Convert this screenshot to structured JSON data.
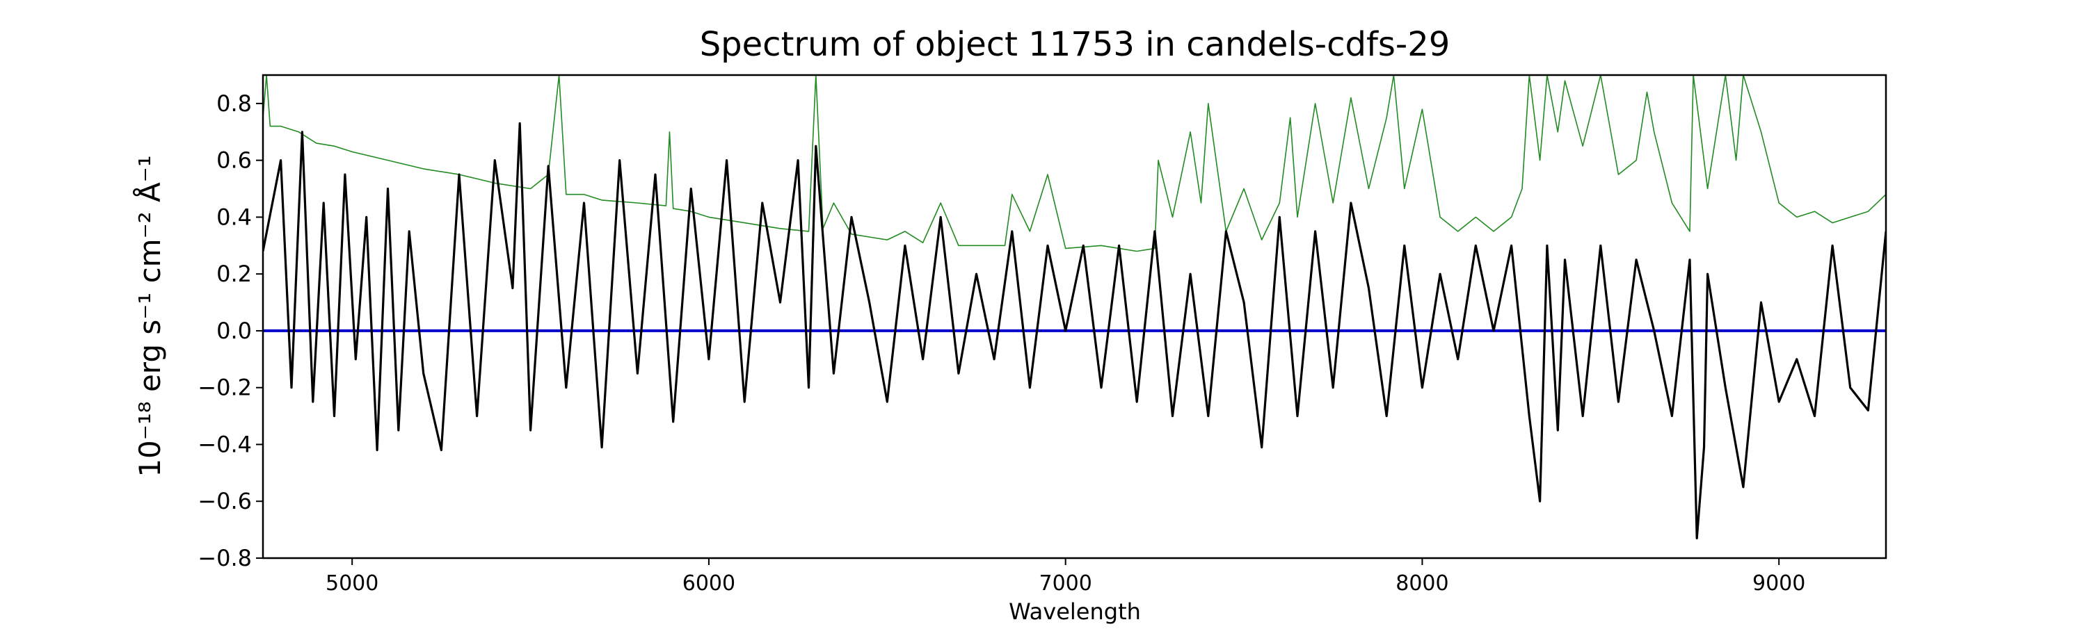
{
  "chart_data": {
    "type": "line",
    "title": "Spectrum of object 11753 in candels-cdfs-29",
    "xlabel": "Wavelength",
    "ylabel": "10⁻¹⁸ erg s⁻¹ cm⁻² Å⁻¹",
    "xlim": [
      4750,
      9300
    ],
    "ylim": [
      -0.8,
      0.9
    ],
    "xticks": [
      5000,
      6000,
      7000,
      8000,
      9000
    ],
    "yticks": [
      -0.8,
      -0.6,
      -0.4,
      -0.2,
      0.0,
      0.2,
      0.4,
      0.6,
      0.8
    ],
    "ytick_labels": [
      "−0.8",
      "−0.6",
      "−0.4",
      "−0.2",
      "0.0",
      "0.2",
      "0.4",
      "0.6",
      "0.8"
    ],
    "grid": false,
    "legend": "none",
    "colors": {
      "flux": "#000000",
      "error": "#228b22",
      "zero": "#0000cc",
      "axes": "#000000"
    },
    "series": [
      {
        "key": "flux",
        "x": [
          4750,
          4800,
          4830,
          4860,
          4890,
          4920,
          4950,
          4980,
          5010,
          5040,
          5070,
          5100,
          5130,
          5160,
          5200,
          5250,
          5300,
          5350,
          5400,
          5450,
          5470,
          5500,
          5550,
          5600,
          5650,
          5700,
          5750,
          5800,
          5850,
          5900,
          5950,
          6000,
          6050,
          6100,
          6150,
          6200,
          6250,
          6280,
          6300,
          6350,
          6400,
          6450,
          6500,
          6550,
          6600,
          6650,
          6700,
          6750,
          6800,
          6850,
          6900,
          6950,
          7000,
          7050,
          7100,
          7150,
          7200,
          7250,
          7300,
          7350,
          7400,
          7450,
          7500,
          7550,
          7600,
          7650,
          7700,
          7750,
          7800,
          7850,
          7900,
          7950,
          8000,
          8050,
          8100,
          8150,
          8200,
          8250,
          8300,
          8330,
          8350,
          8380,
          8400,
          8450,
          8500,
          8550,
          8600,
          8650,
          8700,
          8750,
          8770,
          8790,
          8800,
          8850,
          8900,
          8950,
          9000,
          9050,
          9100,
          9150,
          9200,
          9250,
          9300
        ],
        "y": [
          0.28,
          0.6,
          -0.2,
          0.7,
          -0.25,
          0.45,
          -0.3,
          0.55,
          -0.1,
          0.4,
          -0.42,
          0.5,
          -0.35,
          0.35,
          -0.15,
          -0.42,
          0.55,
          -0.3,
          0.6,
          0.15,
          0.73,
          -0.35,
          0.58,
          -0.2,
          0.45,
          -0.41,
          0.6,
          -0.15,
          0.55,
          -0.32,
          0.5,
          -0.1,
          0.6,
          -0.25,
          0.45,
          0.1,
          0.6,
          -0.2,
          0.65,
          -0.15,
          0.4,
          0.1,
          -0.25,
          0.3,
          -0.1,
          0.4,
          -0.15,
          0.2,
          -0.1,
          0.35,
          -0.2,
          0.3,
          0.0,
          0.3,
          -0.2,
          0.3,
          -0.25,
          0.35,
          -0.3,
          0.2,
          -0.3,
          0.35,
          0.1,
          -0.41,
          0.4,
          -0.3,
          0.35,
          -0.2,
          0.45,
          0.15,
          -0.3,
          0.3,
          -0.2,
          0.2,
          -0.1,
          0.3,
          0.0,
          0.3,
          -0.3,
          -0.6,
          0.3,
          -0.35,
          0.25,
          -0.3,
          0.3,
          -0.25,
          0.25,
          0.0,
          -0.3,
          0.25,
          -0.73,
          -0.41,
          0.2,
          -0.2,
          -0.55,
          0.1,
          -0.25,
          -0.1,
          -0.3,
          0.3,
          -0.2,
          -0.28,
          0.35
        ]
      },
      {
        "key": "error",
        "x": [
          4750,
          4760,
          4770,
          4800,
          4850,
          4900,
          4950,
          5000,
          5100,
          5200,
          5300,
          5400,
          5500,
          5550,
          5580,
          5600,
          5650,
          5700,
          5800,
          5880,
          5890,
          5900,
          5950,
          6000,
          6100,
          6200,
          6280,
          6300,
          6320,
          6350,
          6400,
          6450,
          6500,
          6550,
          6600,
          6650,
          6700,
          6750,
          6800,
          6830,
          6850,
          6900,
          6950,
          7000,
          7100,
          7200,
          7250,
          7260,
          7300,
          7350,
          7380,
          7400,
          7450,
          7500,
          7550,
          7600,
          7630,
          7650,
          7700,
          7750,
          7800,
          7850,
          7900,
          7920,
          7950,
          8000,
          8050,
          8100,
          8150,
          8200,
          8250,
          8280,
          8300,
          8330,
          8350,
          8380,
          8400,
          8450,
          8500,
          8550,
          8600,
          8630,
          8650,
          8700,
          8750,
          8760,
          8800,
          8850,
          8880,
          8900,
          8950,
          9000,
          9050,
          9100,
          9150,
          9200,
          9250,
          9300
        ],
        "y": [
          0.75,
          0.9,
          0.72,
          0.72,
          0.7,
          0.66,
          0.65,
          0.63,
          0.6,
          0.57,
          0.55,
          0.52,
          0.5,
          0.55,
          0.9,
          0.48,
          0.48,
          0.46,
          0.45,
          0.44,
          0.7,
          0.43,
          0.42,
          0.4,
          0.38,
          0.36,
          0.35,
          0.9,
          0.36,
          0.45,
          0.34,
          0.33,
          0.32,
          0.35,
          0.31,
          0.45,
          0.3,
          0.3,
          0.3,
          0.3,
          0.48,
          0.35,
          0.55,
          0.29,
          0.3,
          0.28,
          0.29,
          0.6,
          0.4,
          0.7,
          0.45,
          0.8,
          0.35,
          0.5,
          0.32,
          0.45,
          0.75,
          0.4,
          0.8,
          0.45,
          0.82,
          0.5,
          0.75,
          0.9,
          0.5,
          0.78,
          0.4,
          0.35,
          0.4,
          0.35,
          0.4,
          0.5,
          0.9,
          0.6,
          0.9,
          0.7,
          0.88,
          0.65,
          0.9,
          0.55,
          0.6,
          0.84,
          0.7,
          0.45,
          0.35,
          0.9,
          0.5,
          0.9,
          0.6,
          0.9,
          0.7,
          0.45,
          0.4,
          0.42,
          0.38,
          0.4,
          0.42,
          0.48
        ]
      },
      {
        "key": "zero",
        "x": [
          4750,
          9300
        ],
        "y": [
          0.0,
          0.0
        ]
      }
    ]
  }
}
